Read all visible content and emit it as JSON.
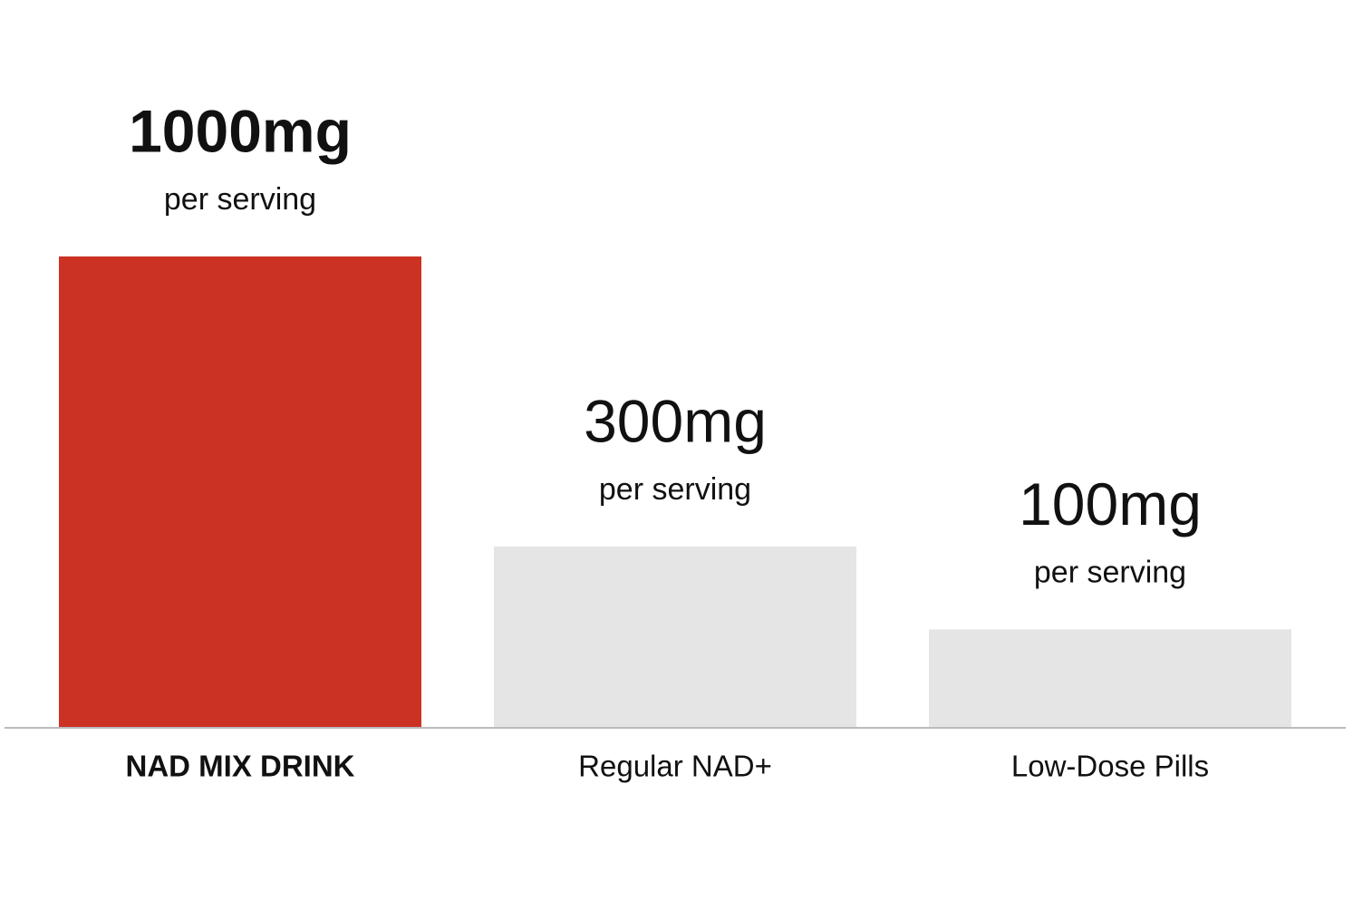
{
  "chart_data": {
    "type": "bar",
    "categories": [
      "NAD MIX DRINK",
      "Regular NAD+",
      "Low-Dose Pills"
    ],
    "values": [
      1000,
      300,
      100
    ],
    "value_labels": [
      "1000mg",
      "300mg",
      "100mg"
    ],
    "annotations": [
      "per serving",
      "per serving",
      "per serving"
    ],
    "colors": [
      "#cc3224",
      "#e5e5e5",
      "#e5e5e5"
    ],
    "ylim": [
      -137.5,
      1400
    ]
  }
}
